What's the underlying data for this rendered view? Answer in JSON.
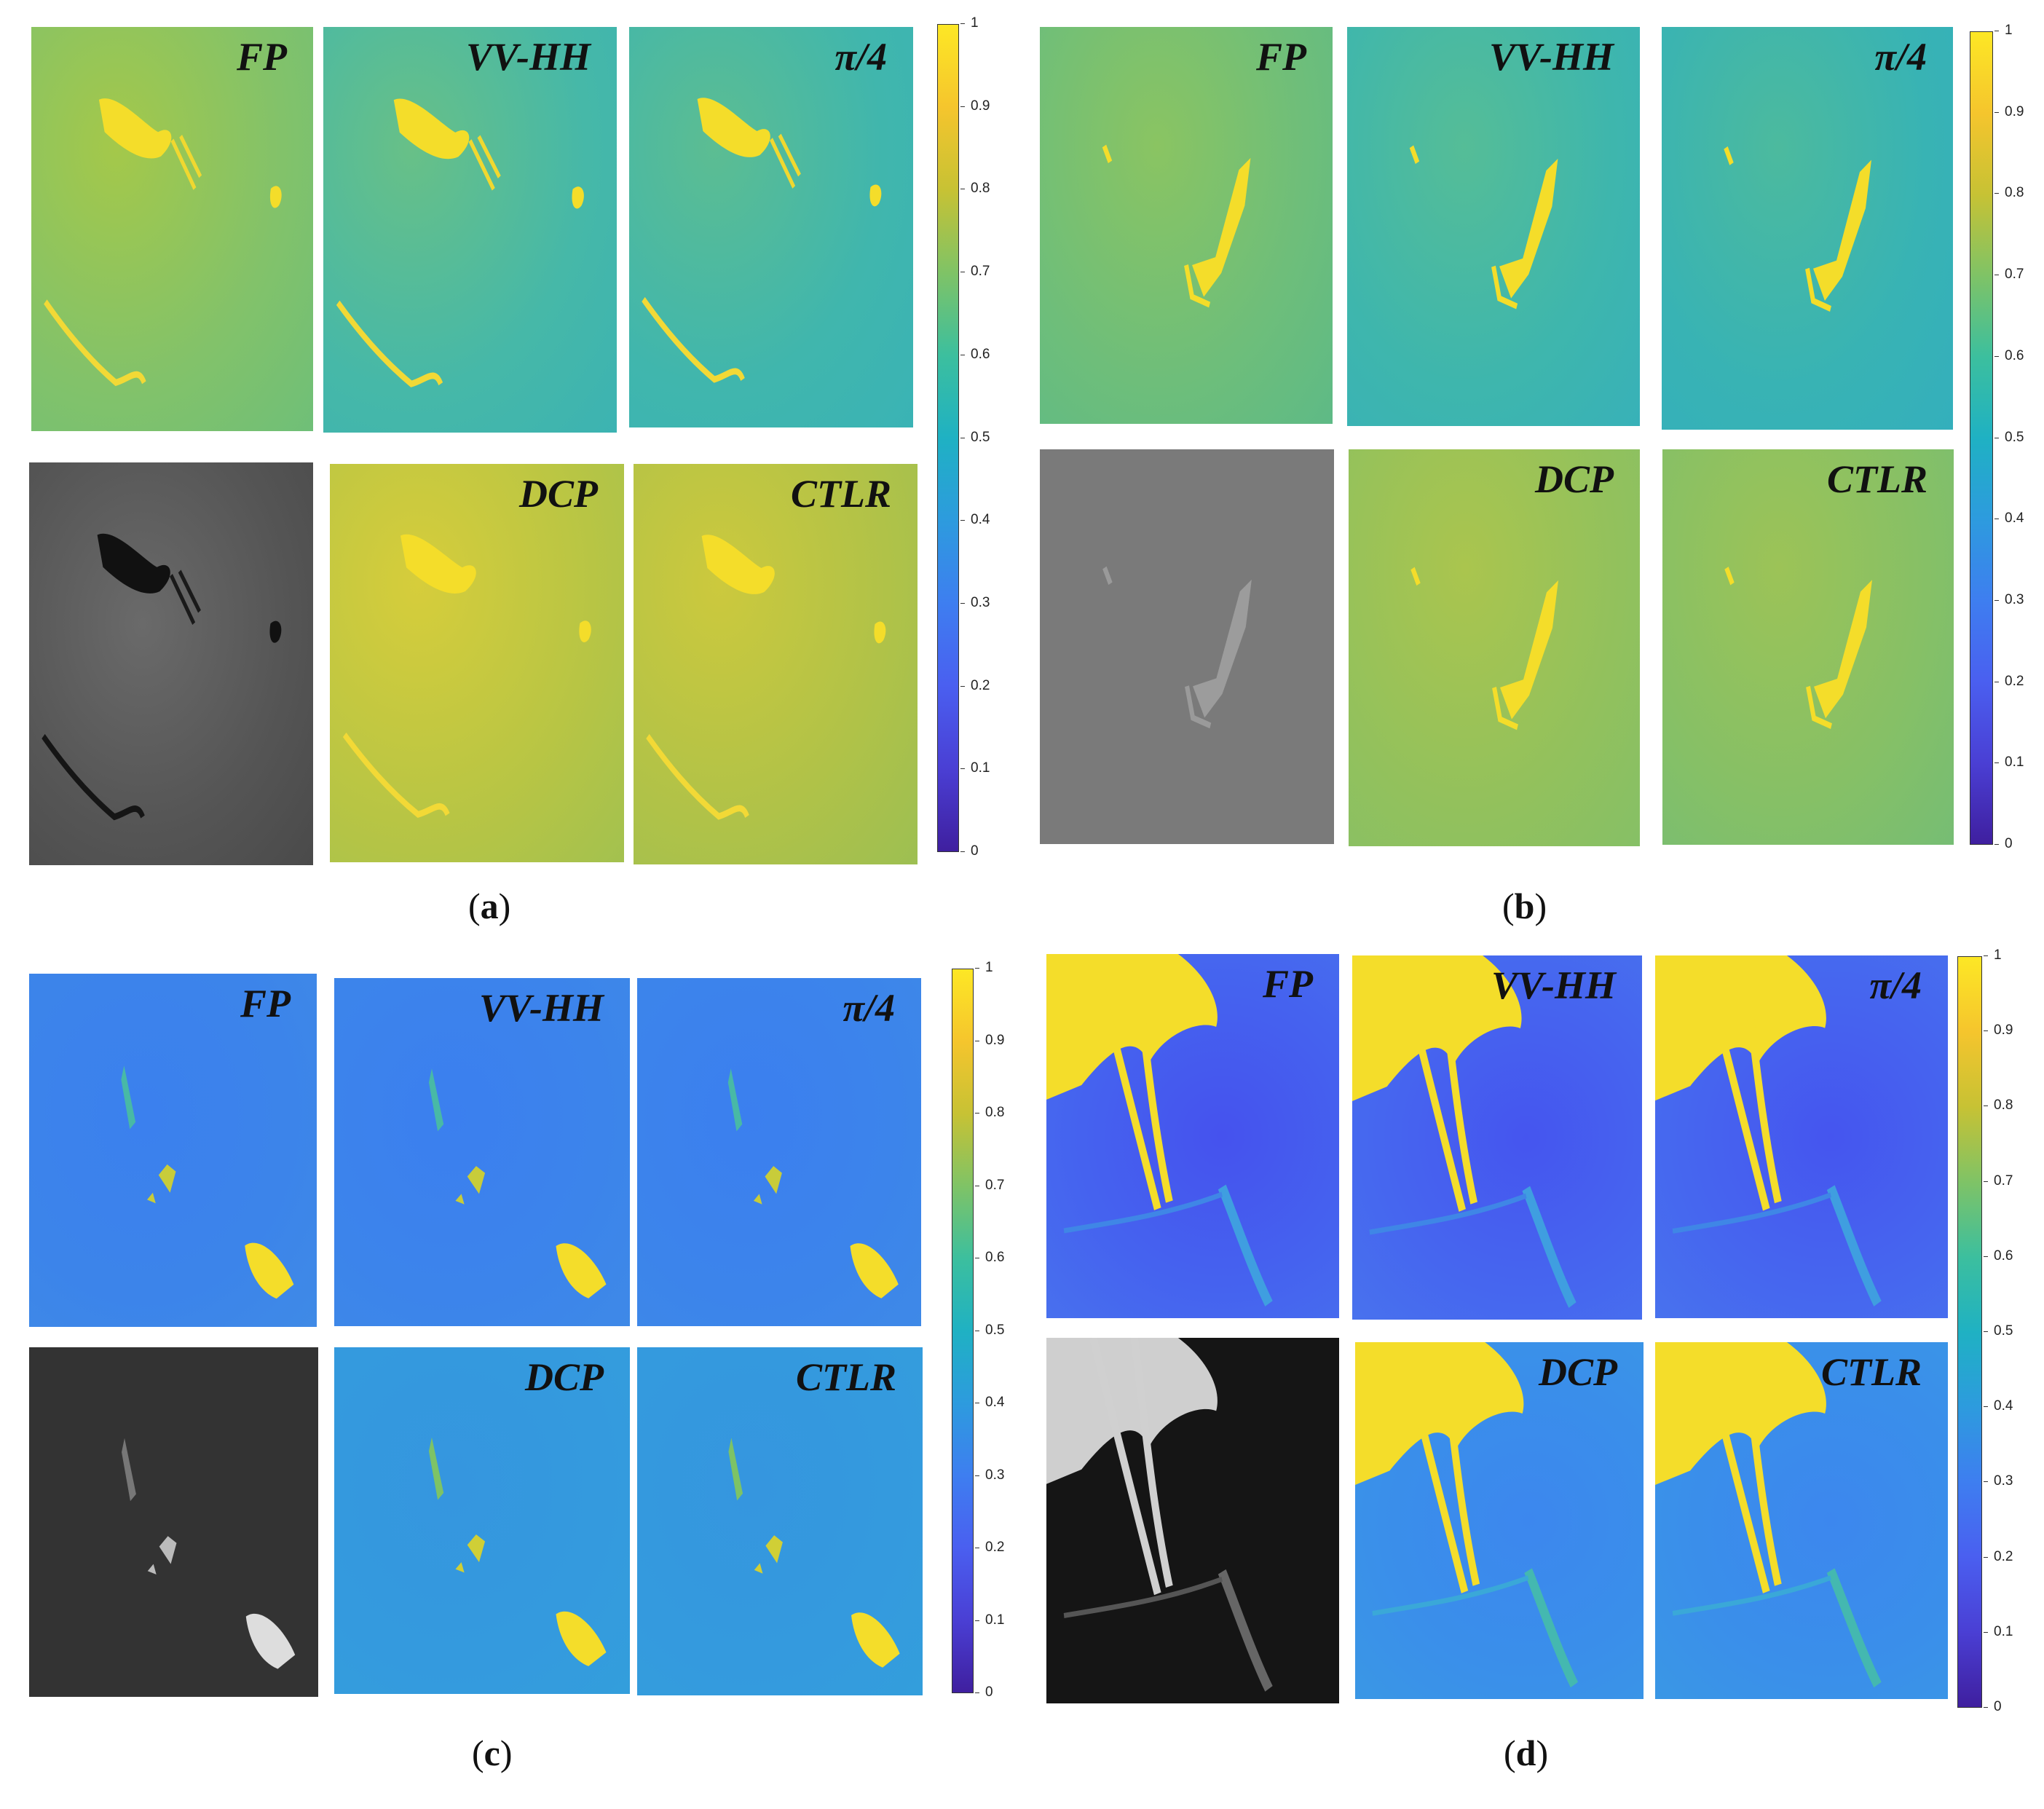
{
  "colorbar_ticks": [
    "1",
    "0.9",
    "0.8",
    "0.7",
    "0.6",
    "0.5",
    "0.4",
    "0.3",
    "0.2",
    "0.1",
    "0"
  ],
  "colorbar_ticks_c": [
    "1",
    "0.9",
    "0.8",
    "0.7",
    "0.6",
    "0.5",
    "0.4",
    "0.3",
    "0.2",
    "0.1",
    "0"
  ],
  "colors": {
    "yellow": "#f4dd2a",
    "colorbar_stops": [
      "#fde725",
      "#f5c52d",
      "#c7c234",
      "#7fc366",
      "#3cbf9e",
      "#1fb1c3",
      "#2d9bde",
      "#3e7ef0",
      "#4a5ff0",
      "#4a3fd4",
      "#3f1f9f"
    ]
  },
  "figures": [
    {
      "caption_letter": "a",
      "panels": [
        "FP",
        "VV-HH",
        "π/4",
        "",
        "DCP",
        "CTLR"
      ]
    },
    {
      "caption_letter": "b",
      "panels": [
        "FP",
        "VV-HH",
        "π/4",
        "",
        "DCP",
        "CTLR"
      ]
    },
    {
      "caption_letter": "c",
      "panels": [
        "FP",
        "VV-HH",
        "π/4",
        "",
        "DCP",
        "CTLR"
      ]
    },
    {
      "caption_letter": "d",
      "panels": [
        "FP",
        "VV-HH",
        "π/4",
        "",
        "DCP",
        "CTLR"
      ]
    }
  ]
}
